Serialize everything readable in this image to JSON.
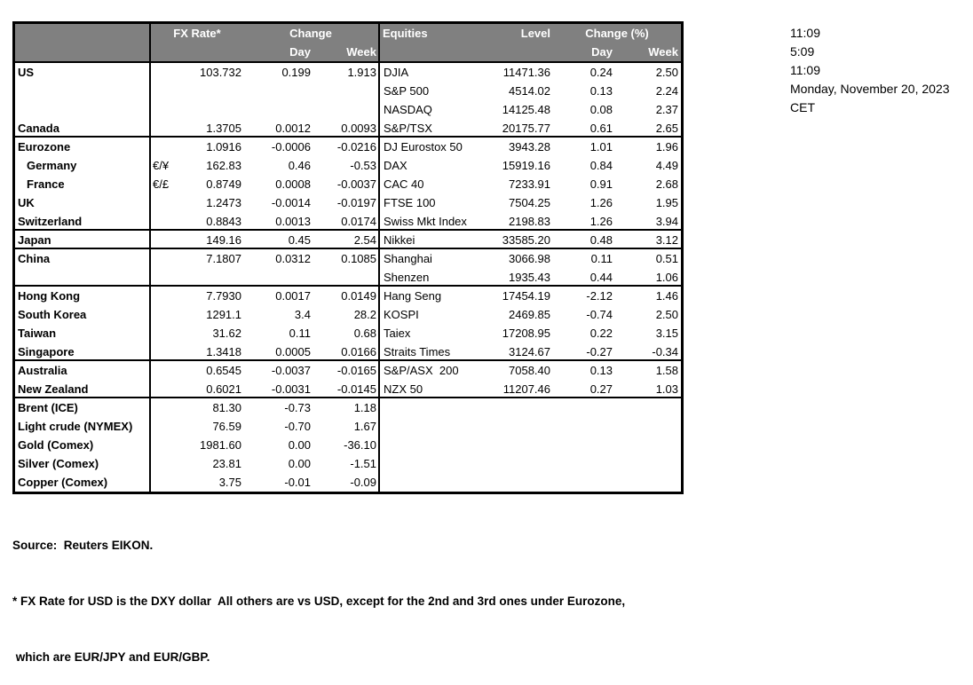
{
  "table": {
    "header": {
      "fx_rate": "FX Rate*",
      "change": "Change",
      "day": "Day",
      "week": "Week",
      "equities": "Equities",
      "level": "Level",
      "change_pct": "Change (%)"
    },
    "rows": [
      {
        "country": "US",
        "indent": false,
        "pair": "",
        "fx": "103.732",
        "fx_day": "0.199",
        "fx_week": "1.913",
        "equity": "DJIA",
        "level": "11471.36",
        "eq_day": "0.24",
        "eq_week": "2.50",
        "group_end": false
      },
      {
        "country": "",
        "indent": false,
        "pair": "",
        "fx": "",
        "fx_day": "",
        "fx_week": "",
        "equity": "S&P 500",
        "level": "4514.02",
        "eq_day": "0.13",
        "eq_week": "2.24",
        "group_end": false
      },
      {
        "country": "",
        "indent": false,
        "pair": "",
        "fx": "",
        "fx_day": "",
        "fx_week": "",
        "equity": "NASDAQ",
        "level": "14125.48",
        "eq_day": "0.08",
        "eq_week": "2.37",
        "group_end": false
      },
      {
        "country": "Canada",
        "indent": false,
        "pair": "",
        "fx": "1.3705",
        "fx_day": "0.0012",
        "fx_week": "0.0093",
        "equity": "S&P/TSX",
        "level": "20175.77",
        "eq_day": "0.61",
        "eq_week": "2.65",
        "group_end": true
      },
      {
        "country": "Eurozone",
        "indent": false,
        "pair": "",
        "fx": "1.0916",
        "fx_day": "-0.0006",
        "fx_week": "-0.0216",
        "equity": "DJ Eurostox 50",
        "level": "3943.28",
        "eq_day": "1.01",
        "eq_week": "1.96",
        "group_end": false
      },
      {
        "country": "Germany",
        "indent": true,
        "pair": "€/¥",
        "fx": "162.83",
        "fx_day": "0.46",
        "fx_week": "-0.53",
        "equity": "DAX",
        "level": "15919.16",
        "eq_day": "0.84",
        "eq_week": "4.49",
        "group_end": false
      },
      {
        "country": "France",
        "indent": true,
        "pair": "€/£",
        "fx": "0.8749",
        "fx_day": "0.0008",
        "fx_week": "-0.0037",
        "equity": "CAC 40",
        "level": "7233.91",
        "eq_day": "0.91",
        "eq_week": "2.68",
        "group_end": false
      },
      {
        "country": "UK",
        "indent": false,
        "pair": "",
        "fx": "1.2473",
        "fx_day": "-0.0014",
        "fx_week": "-0.0197",
        "equity": "FTSE 100",
        "level": "7504.25",
        "eq_day": "1.26",
        "eq_week": "1.95",
        "group_end": false
      },
      {
        "country": "Switzerland",
        "indent": false,
        "pair": "",
        "fx": "0.8843",
        "fx_day": "0.0013",
        "fx_week": "0.0174",
        "equity": "Swiss Mkt Index",
        "level": "2198.83",
        "eq_day": "1.26",
        "eq_week": "3.94",
        "group_end": true
      },
      {
        "country": "Japan",
        "indent": false,
        "pair": "",
        "fx": "149.16",
        "fx_day": "0.45",
        "fx_week": "2.54",
        "equity": "Nikkei",
        "level": "33585.20",
        "eq_day": "0.48",
        "eq_week": "3.12",
        "group_end": true
      },
      {
        "country": "China",
        "indent": false,
        "pair": "",
        "fx": "7.1807",
        "fx_day": "0.0312",
        "fx_week": "0.1085",
        "equity": "Shanghai",
        "level": "3066.98",
        "eq_day": "0.11",
        "eq_week": "0.51",
        "group_end": false
      },
      {
        "country": "",
        "indent": false,
        "pair": "",
        "fx": "",
        "fx_day": "",
        "fx_week": "",
        "equity": "Shenzen",
        "level": "1935.43",
        "eq_day": "0.44",
        "eq_week": "1.06",
        "group_end": true
      },
      {
        "country": "Hong Kong",
        "indent": false,
        "pair": "",
        "fx": "7.7930",
        "fx_day": "0.0017",
        "fx_week": "0.0149",
        "equity": "Hang Seng",
        "level": "17454.19",
        "eq_day": "-2.12",
        "eq_week": "1.46",
        "group_end": false
      },
      {
        "country": "South Korea",
        "indent": false,
        "pair": "",
        "fx": "1291.1",
        "fx_day": "3.4",
        "fx_week": "28.2",
        "equity": "KOSPI",
        "level": "2469.85",
        "eq_day": "-0.74",
        "eq_week": "2.50",
        "group_end": false
      },
      {
        "country": "Taiwan",
        "indent": false,
        "pair": "",
        "fx": "31.62",
        "fx_day": "0.11",
        "fx_week": "0.68",
        "equity": "Taiex",
        "level": "17208.95",
        "eq_day": "0.22",
        "eq_week": "3.15",
        "group_end": false
      },
      {
        "country": "Singapore",
        "indent": false,
        "pair": "",
        "fx": "1.3418",
        "fx_day": "0.0005",
        "fx_week": "0.0166",
        "equity": "Straits Times",
        "level": "3124.67",
        "eq_day": "-0.27",
        "eq_week": "-0.34",
        "group_end": true
      },
      {
        "country": "Australia",
        "indent": false,
        "pair": "",
        "fx": "0.6545",
        "fx_day": "-0.0037",
        "fx_week": "-0.0165",
        "equity": "S&P/ASX  200",
        "level": "7058.40",
        "eq_day": "0.13",
        "eq_week": "1.58",
        "group_end": false
      },
      {
        "country": "New Zealand",
        "indent": false,
        "pair": "",
        "fx": "0.6021",
        "fx_day": "-0.0031",
        "fx_week": "-0.0145",
        "equity": "NZX 50",
        "level": "11207.46",
        "eq_day": "0.27",
        "eq_week": "1.03",
        "group_end": true
      },
      {
        "country": "Brent (ICE)",
        "indent": false,
        "pair": "",
        "fx": "81.30",
        "fx_day": "-0.73",
        "fx_week": "1.18",
        "equity": "",
        "level": "",
        "eq_day": "",
        "eq_week": "",
        "group_end": false
      },
      {
        "country": "Light crude (NYMEX)",
        "indent": false,
        "pair": "",
        "fx": "76.59",
        "fx_day": "-0.70",
        "fx_week": "1.67",
        "equity": "",
        "level": "",
        "eq_day": "",
        "eq_week": "",
        "group_end": false
      },
      {
        "country": "Gold (Comex)",
        "indent": false,
        "pair": "",
        "fx": "1981.60",
        "fx_day": "0.00",
        "fx_week": "-36.10",
        "equity": "",
        "level": "",
        "eq_day": "",
        "eq_week": "",
        "group_end": false
      },
      {
        "country": "Silver (Comex)",
        "indent": false,
        "pair": "",
        "fx": "23.81",
        "fx_day": "0.00",
        "fx_week": "-1.51",
        "equity": "",
        "level": "",
        "eq_day": "",
        "eq_week": "",
        "group_end": false
      },
      {
        "country": "Copper (Comex)",
        "indent": false,
        "pair": "",
        "fx": "3.75",
        "fx_day": "-0.01",
        "fx_week": "-0.09",
        "equity": "",
        "level": "",
        "eq_day": "",
        "eq_week": "",
        "group_end": false
      }
    ]
  },
  "info_panel": {
    "lines": [
      "11:09",
      "5:09",
      "11:09",
      "Monday, November 20, 2023",
      "CET"
    ]
  },
  "footer": {
    "source": "Source:  Reuters EIKON.",
    "note_line1": "* FX Rate for USD is the DXY dollar  All others are vs USD, except for the 2nd and 3rd ones under Eurozone,",
    "note_line2": " which are EUR/JPY and EUR/GBP."
  },
  "colors": {
    "header_bg": "#808080",
    "header_text": "#FFFFFF",
    "border": "#000000",
    "text": "#000000",
    "background": "#FFFFFF"
  }
}
